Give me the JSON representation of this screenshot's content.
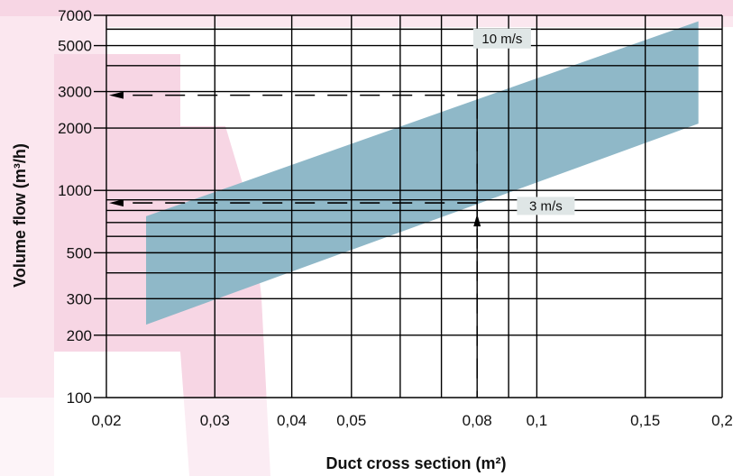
{
  "chart_data": {
    "type": "area",
    "xlabel": "Duct cross section (m²)",
    "ylabel": "Volume flow (m³/h)",
    "x_scale": "log",
    "y_scale": "log",
    "xlim": [
      0.02,
      0.2
    ],
    "ylim": [
      100,
      7000
    ],
    "x_ticks": [
      {
        "value": 0.02,
        "label": "0,02"
      },
      {
        "value": 0.03,
        "label": "0,03"
      },
      {
        "value": 0.04,
        "label": "0,04"
      },
      {
        "value": 0.05,
        "label": "0,05"
      },
      {
        "value": 0.08,
        "label": "0,08"
      },
      {
        "value": 0.1,
        "label": "0,1"
      },
      {
        "value": 0.15,
        "label": "0,15"
      },
      {
        "value": 0.2,
        "label": "0,2"
      }
    ],
    "x_grid": [
      0.02,
      0.03,
      0.04,
      0.05,
      0.06,
      0.07,
      0.08,
      0.09,
      0.1,
      0.15,
      0.2
    ],
    "y_ticks": [
      {
        "value": 100,
        "label": "100"
      },
      {
        "value": 200,
        "label": "200"
      },
      {
        "value": 300,
        "label": "300"
      },
      {
        "value": 500,
        "label": "500"
      },
      {
        "value": 1000,
        "label": "1000"
      },
      {
        "value": 2000,
        "label": "2000"
      },
      {
        "value": 3000,
        "label": "3000"
      },
      {
        "value": 5000,
        "label": "5000"
      },
      {
        "value": 7000,
        "label": "7000"
      }
    ],
    "y_grid": [
      100,
      200,
      300,
      400,
      500,
      600,
      700,
      800,
      900,
      1000,
      2000,
      3000,
      4000,
      5000,
      6000,
      7000
    ],
    "band": {
      "color": "#8fb8c8",
      "x_start": 0.0232,
      "x_end": 0.183,
      "upper_start": 750,
      "upper_end": 6550,
      "lower_start": 225,
      "lower_end": 2100
    },
    "band_labels": [
      {
        "text": "10 m/s"
      },
      {
        "text": "3 m/s"
      }
    ],
    "example": {
      "x": 0.08,
      "y_high": 2880,
      "y_low": 870
    },
    "grid": true,
    "colors": {
      "background_shape": "#f7d6e4",
      "grid": "#000000",
      "band": "#8fb8c8",
      "label_box": "#dfe6e6"
    }
  }
}
